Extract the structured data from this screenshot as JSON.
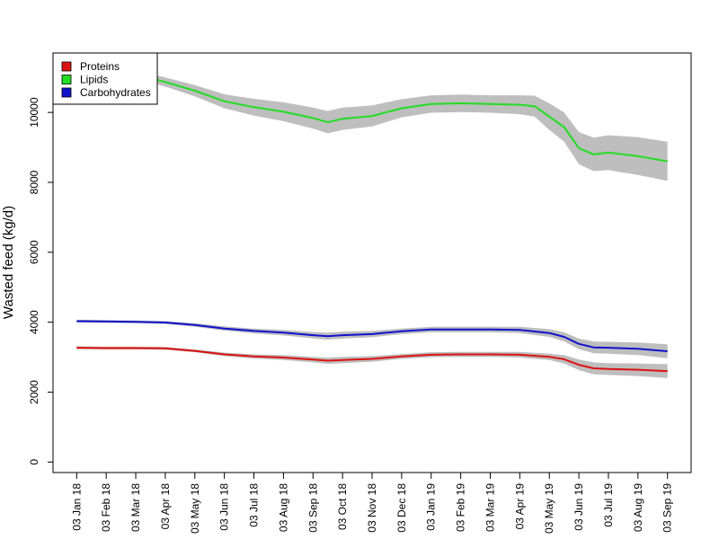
{
  "chart_data": {
    "type": "line",
    "title": "",
    "xlabel": "",
    "ylabel": "Wasted feed (kg/d)",
    "ylim": [
      -300,
      11700
    ],
    "yticks": [
      0,
      2000,
      4000,
      6000,
      8000,
      10000
    ],
    "x_tick_labels": [
      "03 Jan 18",
      "03 Feb 18",
      "03 Mar 18",
      "03 Apr 18",
      "03 May 18",
      "03 Jun 18",
      "03 Jul 18",
      "03 Aug 18",
      "03 Sep 18",
      "03 Oct 18",
      "03 Nov 18",
      "03 Dec 18",
      "03 Jan 19",
      "03 Feb 19",
      "03 Mar 19",
      "03 Apr 19",
      "03 May 19",
      "03 Jun 19",
      "03 Jul 19",
      "03 Aug 19",
      "03 Sep 19"
    ],
    "x_unit": "months since 03 Jan 18",
    "xlim": [
      -0.8,
      20.8
    ],
    "legend_position": "top-left",
    "band_color": "#bebebe",
    "series": [
      {
        "name": "Proteins",
        "color": "#dd1111",
        "x": [
          0,
          1,
          2,
          3,
          4,
          5,
          6,
          7,
          8,
          8.5,
          9,
          10,
          11,
          12,
          13,
          14,
          15,
          16,
          16.5,
          17,
          17.5,
          18,
          19,
          20
        ],
        "values": [
          3270,
          3260,
          3260,
          3250,
          3180,
          3080,
          3020,
          2990,
          2930,
          2900,
          2920,
          2950,
          3020,
          3070,
          3080,
          3080,
          3070,
          3010,
          2940,
          2780,
          2680,
          2660,
          2640,
          2600
        ],
        "band": [
          40,
          40,
          40,
          40,
          40,
          50,
          60,
          70,
          80,
          90,
          90,
          80,
          70,
          70,
          70,
          70,
          80,
          90,
          120,
          150,
          170,
          170,
          180,
          200
        ]
      },
      {
        "name": "Lipids",
        "color": "#22dd22",
        "x": [
          0,
          1,
          2,
          3,
          4,
          5,
          6,
          7,
          8,
          8.5,
          9,
          10,
          11,
          12,
          13,
          14,
          15,
          15.5,
          16,
          16.5,
          17,
          17.5,
          18,
          19,
          20
        ],
        "values": [
          11400,
          11300,
          11100,
          10870,
          10620,
          10320,
          10150,
          10020,
          9840,
          9720,
          9820,
          9900,
          10120,
          10240,
          10260,
          10240,
          10220,
          10180,
          9880,
          9580,
          8980,
          8800,
          8850,
          8750,
          8600
        ],
        "band": [
          120,
          120,
          120,
          130,
          160,
          200,
          240,
          270,
          300,
          320,
          320,
          300,
          260,
          250,
          250,
          250,
          270,
          300,
          380,
          420,
          460,
          480,
          500,
          540,
          560
        ]
      },
      {
        "name": "Carbohydrates",
        "color": "#1111cc",
        "x": [
          0,
          1,
          2,
          3,
          4,
          5,
          6,
          7,
          8,
          8.5,
          9,
          10,
          11,
          12,
          13,
          14,
          15,
          16,
          16.5,
          17,
          17.5,
          18,
          19,
          20
        ],
        "values": [
          4030,
          4020,
          4010,
          3990,
          3920,
          3820,
          3750,
          3700,
          3630,
          3600,
          3630,
          3660,
          3740,
          3790,
          3790,
          3790,
          3780,
          3690,
          3580,
          3380,
          3280,
          3270,
          3240,
          3170
        ],
        "band": [
          40,
          40,
          40,
          40,
          50,
          60,
          70,
          80,
          90,
          100,
          100,
          90,
          80,
          80,
          80,
          80,
          90,
          110,
          130,
          150,
          170,
          170,
          180,
          200
        ]
      }
    ]
  }
}
